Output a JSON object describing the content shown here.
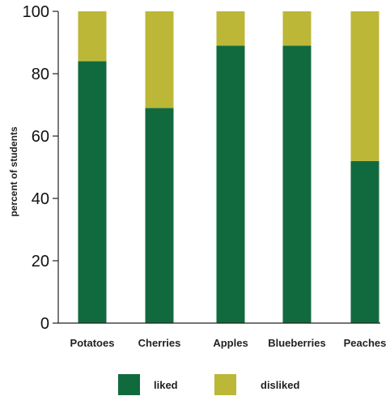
{
  "chart_data": {
    "type": "bar",
    "stacked": true,
    "title": "",
    "xlabel": "",
    "ylabel": "percent of students",
    "ylim": [
      0,
      100
    ],
    "yticks": [
      0,
      20,
      40,
      60,
      80,
      100
    ],
    "grid": false,
    "legend_position": "bottom",
    "categories": [
      "Potatoes",
      "Cherries",
      "Apples",
      "Blueberries",
      "Peaches"
    ],
    "series": [
      {
        "name": "liked",
        "color": "#116a3e",
        "values": [
          84,
          69,
          89,
          89,
          52
        ]
      },
      {
        "name": "disliked",
        "color": "#bcb737",
        "values": [
          16,
          31,
          11,
          11,
          48
        ]
      }
    ]
  }
}
